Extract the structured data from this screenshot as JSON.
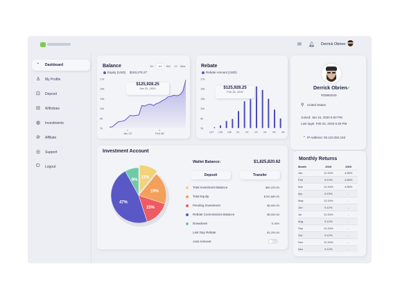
{
  "topbar": {
    "user_name": "Derrick Obrien",
    "mail_icon": "mail-icon",
    "bell_icon": "bell-icon"
  },
  "sidebar": {
    "items": [
      {
        "label": "Dashboard",
        "icon": "dashboard-icon"
      },
      {
        "label": "My Profile",
        "icon": "user-icon"
      },
      {
        "label": "Deposit",
        "icon": "deposit-icon"
      },
      {
        "label": "Withdraw",
        "icon": "withdraw-icon"
      },
      {
        "label": "Investments",
        "icon": "investments-icon"
      },
      {
        "label": "Affiliate",
        "icon": "affiliate-icon"
      },
      {
        "label": "Support",
        "icon": "support-icon"
      },
      {
        "label": "Logout",
        "icon": "logout-icon"
      }
    ]
  },
  "balance": {
    "title": "Balance",
    "legend": "Equity (USD)",
    "legend_value": "$153,276.27",
    "ranges": [
      "1H",
      "1M",
      "6M",
      "1Y",
      "Max"
    ],
    "selected_range": "1M",
    "tooltip_value": "$125,928.25",
    "tooltip_date": "Jan 31, 2020"
  },
  "rebate": {
    "title": "Rebate",
    "legend": "Rebate Amount (USD)",
    "tooltip_value": "$125,928.25",
    "tooltip_date": "Feb 28, 2020"
  },
  "profile": {
    "name": "Derrick Obrien",
    "id": "#03882043",
    "country": "United States",
    "joined": "Joined: Jan 24, 2020 5:02 PM",
    "last_login": "Last login: Feb 22, 2020 6:40 PM",
    "ip": "IP Address: 92.110.252.163"
  },
  "investment": {
    "title": "Investment Account",
    "wallet_label": "Wallet Balance:",
    "wallet_value": "$1,825,820.62",
    "deposit_label": "Deposit",
    "transfer_label": "Transfer",
    "rows": [
      {
        "label": "Total Investment Balance",
        "value": "$80,220.00",
        "color": "#f2d37a"
      },
      {
        "label": "Total Equity",
        "value": "$152,680.00",
        "color": "#f3a05a"
      },
      {
        "label": "Pending Investment",
        "value": "$5,000.00",
        "color": "#ee5b63"
      },
      {
        "label": "Rebate Commissions Balance",
        "value": "$5,000.00",
        "color": "#5a58c6"
      },
      {
        "label": "Drawdown",
        "value": "5.15%",
        "color": "#6ecba8"
      },
      {
        "label": "Last Day Rebate",
        "value": "$1,200.00",
        "color": ""
      },
      {
        "label": "Auto-reinvest",
        "value": "",
        "color": ""
      }
    ]
  },
  "returns": {
    "title": "Monthly Returns",
    "headers": [
      "Month",
      "2019",
      "2020"
    ],
    "rows": [
      [
        "Jan",
        "11.34%",
        "4.56%"
      ],
      [
        "Feb",
        "9.12%",
        "4.56%"
      ],
      [
        "Mar",
        "11.34%",
        "4.56%"
      ],
      [
        "Apr",
        "9.15%",
        "-"
      ],
      [
        "May",
        "11.34%",
        "-"
      ],
      [
        "Jun",
        "9.12%",
        "-"
      ],
      [
        "Jul",
        "11.34%",
        "-"
      ],
      [
        "Aug",
        "9.12%",
        "-"
      ],
      [
        "Sep",
        "11.34%",
        "-"
      ],
      [
        "Oct",
        "9.12%",
        "-"
      ],
      [
        "Nov",
        "11.34%",
        "-"
      ],
      [
        "Dec",
        "9.12%",
        "-"
      ]
    ]
  },
  "chart_data": [
    {
      "type": "area",
      "title": "Balance",
      "y_ticks": [
        "17k",
        "15k",
        "13k",
        "11k",
        "9k",
        "7k"
      ],
      "x_ticks": [
        "Jan 23",
        "Feb 08"
      ],
      "series": [
        {
          "name": "Equity (USD)",
          "values": [
            7.2,
            7.3,
            7.8,
            8.3,
            8.4,
            8.5,
            9.0,
            9.6,
            9.5,
            9.6,
            9.7,
            11.6,
            11.5,
            11.8,
            11.9,
            11.6,
            12.0,
            12.2,
            12.6,
            12.9,
            13.4,
            13.5,
            13.7,
            13.6,
            13.8,
            14.5,
            16.8
          ]
        }
      ],
      "ylim": [
        7,
        17
      ]
    },
    {
      "type": "bar",
      "title": "Rebate",
      "y_ticks": [
        "17k",
        "15k",
        "13k",
        "11k",
        "9k",
        "7k"
      ],
      "categories": [
        "1/27",
        "1/28",
        "1/29",
        "1/30",
        "1/31",
        "2/1",
        "2/2",
        "2/3",
        "2/4",
        "2/5",
        "2/6",
        "2/7"
      ],
      "x_tick_labels": [
        "1/27",
        "1/29",
        "1/30",
        "2/1",
        "2/2",
        "2/3",
        "2/4",
        "2/5",
        "2/6"
      ],
      "series": [
        {
          "name": "Rebate Amount (USD)",
          "values": [
            7.2,
            7.6,
            8.5,
            8.9,
            10.5,
            12.5,
            14.0,
            15.5,
            14.8,
            13.0,
            10.8,
            9.0
          ]
        }
      ],
      "ylim": [
        7,
        17
      ]
    },
    {
      "type": "pie",
      "slices": [
        {
          "label": "11%",
          "value": 11,
          "color": "#f2d37a"
        },
        {
          "label": "19%",
          "value": 19,
          "color": "#f3a05a"
        },
        {
          "label": "15%",
          "value": 15,
          "color": "#ee5b63"
        },
        {
          "label": "47%",
          "value": 47,
          "color": "#5a58c6"
        },
        {
          "label": "8%",
          "value": 8,
          "color": "#6ecba8"
        }
      ]
    }
  ]
}
